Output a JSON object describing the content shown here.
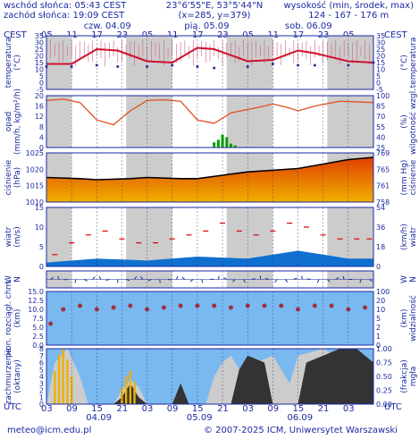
{
  "header": {
    "sunrise": "wschód słońca: 05:43 CEST",
    "sunset": "zachód słońca: 19:09 CEST",
    "coords": "23°6'55\"E, 53°5'44\"N",
    "grid": "(x=285, y=379)",
    "height_title": "wysokość (min, środek, max)",
    "height_values": "124 - 167 - 176 m"
  },
  "top_axis": {
    "tz_label": "CEST",
    "hours": [
      "05",
      "11",
      "17",
      "23",
      "05",
      "11",
      "17",
      "23",
      "05",
      "11",
      "17",
      "23",
      "05"
    ],
    "days": [
      "czw. 04.09",
      "pią. 05.09",
      "sob. 06.09"
    ]
  },
  "bottom_axis": {
    "tz_label": "UTC",
    "hours": [
      "03",
      "09",
      "15",
      "21",
      "03",
      "09",
      "15",
      "21",
      "03",
      "09",
      "15",
      "21",
      "03"
    ],
    "dates": [
      "04.09",
      "05.09",
      "06.09"
    ]
  },
  "footer": {
    "email": "meteo@icm.edu.pl",
    "copyright": "© 2007-2025 ICM, Uniwersytet Warszawski"
  },
  "colors": {
    "frame": "#1a2aa0",
    "night": "#cccccc",
    "temperature": "#d01030",
    "dewpoint": "#2030a0",
    "humidity": "#e05020",
    "precip": "#00a000",
    "pressure": "#000000",
    "wind_gust": "#e00000",
    "wind_band": "#1070d0",
    "sky": "#7ab8f0",
    "cloud_dark": "#333333",
    "cloud_light": "#cccccc",
    "fog": "#f0b000"
  },
  "panels": [
    {
      "label_left": [
        "temperatura",
        "(°C)"
      ],
      "label_right": [
        "(°C)",
        "temperatura"
      ],
      "ticks_left": [
        "35",
        "30",
        "25",
        "20",
        "15",
        "10",
        "5",
        "0",
        "-5"
      ],
      "ticks_right": [
        "35",
        "30",
        "25",
        "20",
        "15",
        "10",
        "5",
        "0",
        "-5"
      ]
    },
    {
      "label_left": [
        "opad",
        "(mm/h, kg/m²/h)"
      ],
      "label_right": [
        "(%)",
        "wilgotność wzgl."
      ],
      "ticks_left": [
        "20",
        "16",
        "12",
        "8",
        "4",
        "0"
      ],
      "ticks_right": [
        "100",
        "85",
        "70",
        "55",
        "40",
        "25"
      ]
    },
    {
      "label_left": [
        "ciśnienie",
        "(hPa)"
      ],
      "label_right": [
        "(mm Hg)",
        "ciśnienie"
      ],
      "ticks_left": [
        "1025",
        "1020",
        "1015",
        "1010"
      ],
      "ticks_right": [
        "769",
        "765",
        "761",
        "758"
      ]
    },
    {
      "label_left": [
        "wiatr",
        "(m/s)"
      ],
      "label_right": [
        "(km/h)",
        "wiatr"
      ],
      "ticks_left": [
        "15",
        "10",
        "5",
        "0"
      ],
      "ticks_right": [
        "54",
        "36",
        "18",
        "0"
      ]
    },
    {
      "label_left": [
        "W",
        "N"
      ],
      "label_right": [
        "W",
        "N"
      ],
      "ticks_left": [],
      "ticks_right": []
    },
    {
      "label_left": [
        "pion. rozciągł. chm.",
        "(km)"
      ],
      "label_right": [
        "(km)",
        "widzialność"
      ],
      "ticks_left": [
        "15.0",
        "12.5",
        "10.0",
        "7.5",
        "5.0",
        "2.5",
        "0.0"
      ],
      "ticks_right": [
        "100",
        "20",
        "10",
        "5",
        "2",
        "1",
        "0"
      ]
    },
    {
      "label_left": [
        "zachmurzenie",
        "(oktany)"
      ],
      "label_right": [
        "(frakcja)",
        "mgła"
      ],
      "ticks_left": [
        "8",
        "7",
        "6",
        "5",
        "4",
        "3",
        "2",
        "1",
        "0"
      ],
      "ticks_right": [
        "1.00",
        "0.75",
        "0.50",
        "0.25",
        "0.00"
      ]
    }
  ],
  "chart_data": [
    {
      "type": "line",
      "x_unit": "hours since 04.09 00:00 CEST",
      "ylim": [
        -5,
        35
      ],
      "series": [
        {
          "values": [
            [
              0,
              14
            ],
            [
              6,
              14
            ],
            [
              12,
              25
            ],
            [
              17,
              24
            ],
            [
              24,
              16
            ],
            [
              30,
              15
            ],
            [
              36,
              26
            ],
            [
              40,
              25
            ],
            [
              48,
              16
            ],
            [
              54,
              17
            ],
            [
              60,
              24
            ],
            [
              64,
              22
            ],
            [
              72,
              16
            ],
            [
              78,
              15
            ]
          ]
        },
        {
          "values": [
            [
              0,
              12
            ],
            [
              6,
              12
            ],
            [
              12,
              13
            ],
            [
              17,
              12
            ],
            [
              24,
              12
            ],
            [
              30,
              13
            ],
            [
              36,
              12
            ],
            [
              40,
              11
            ],
            [
              48,
              12
            ],
            [
              54,
              14
            ],
            [
              60,
              13
            ],
            [
              64,
              13
            ],
            [
              72,
              13
            ],
            [
              78,
              15
            ]
          ]
        }
      ]
    },
    {
      "type": "line",
      "ylim": [
        0,
        20
      ],
      "y2lim": [
        25,
        100
      ],
      "series": [
        {
          "values": [
            [
              0,
              93
            ],
            [
              4,
              95
            ],
            [
              8,
              90
            ],
            [
              12,
              65
            ],
            [
              16,
              58
            ],
            [
              20,
              78
            ],
            [
              24,
              93
            ],
            [
              28,
              94
            ],
            [
              32,
              92
            ],
            [
              36,
              65
            ],
            [
              40,
              60
            ],
            [
              44,
              75
            ],
            [
              48,
              80
            ],
            [
              52,
              85
            ],
            [
              54,
              88
            ],
            [
              58,
              82
            ],
            [
              60,
              78
            ],
            [
              64,
              85
            ],
            [
              70,
              92
            ],
            [
              78,
              90
            ]
          ]
        },
        {
          "type": "bar",
          "values": [
            [
              40,
              2
            ],
            [
              41,
              3
            ],
            [
              42,
              5
            ],
            [
              43,
              4
            ],
            [
              44,
              1.5
            ],
            [
              45,
              0.8
            ]
          ]
        }
      ]
    },
    {
      "type": "line",
      "ylim": [
        1006,
        1028
      ],
      "series": [
        {
          "values": [
            [
              0,
              1017
            ],
            [
              8,
              1016.5
            ],
            [
              12,
              1016
            ],
            [
              20,
              1016.5
            ],
            [
              24,
              1017
            ],
            [
              32,
              1016.5
            ],
            [
              36,
              1016.5
            ],
            [
              42,
              1018
            ],
            [
              48,
              1019.5
            ],
            [
              60,
              1021
            ],
            [
              66,
              1023
            ],
            [
              72,
              1025
            ],
            [
              78,
              1026
            ]
          ]
        }
      ]
    },
    {
      "type": "line",
      "ylim": [
        0,
        15
      ],
      "series": [
        {
          "values": [
            [
              0,
              1
            ],
            [
              12,
              2
            ],
            [
              24,
              1.5
            ],
            [
              36,
              2.5
            ],
            [
              48,
              2
            ],
            [
              54,
              3
            ],
            [
              60,
              4
            ],
            [
              66,
              3
            ],
            [
              72,
              2
            ],
            [
              78,
              2
            ]
          ]
        },
        {
          "type": "scatter",
          "values": [
            [
              2,
              3
            ],
            [
              6,
              6
            ],
            [
              10,
              8
            ],
            [
              14,
              9
            ],
            [
              18,
              7
            ],
            [
              22,
              6
            ],
            [
              26,
              6
            ],
            [
              30,
              7
            ],
            [
              34,
              8
            ],
            [
              38,
              9
            ],
            [
              42,
              11
            ],
            [
              46,
              9
            ],
            [
              50,
              8
            ],
            [
              54,
              9
            ],
            [
              58,
              11
            ],
            [
              62,
              10
            ],
            [
              66,
              8
            ],
            [
              70,
              7
            ],
            [
              74,
              7
            ],
            [
              77,
              7
            ]
          ]
        }
      ]
    },
    {
      "type": "scatter",
      "ylim": [
        0,
        15
      ],
      "series": [
        {
          "values": [
            [
              1,
              6
            ],
            [
              4,
              10
            ],
            [
              8,
              11
            ],
            [
              12,
              10
            ],
            [
              16,
              10.5
            ],
            [
              20,
              11
            ],
            [
              24,
              10
            ],
            [
              28,
              10.5
            ],
            [
              32,
              11
            ],
            [
              36,
              11
            ],
            [
              40,
              11
            ],
            [
              44,
              10.5
            ],
            [
              48,
              11
            ],
            [
              52,
              11
            ],
            [
              56,
              11
            ],
            [
              60,
              10
            ],
            [
              64,
              11
            ],
            [
              68,
              11
            ],
            [
              72,
              10
            ],
            [
              76,
              10.5
            ]
          ]
        }
      ]
    },
    {
      "type": "area",
      "ylim": [
        0,
        8
      ],
      "series": [
        {
          "values": [
            [
              0,
              0
            ],
            [
              2,
              6
            ],
            [
              5,
              8
            ],
            [
              8,
              4
            ],
            [
              10,
              0
            ],
            [
              16,
              0
            ],
            [
              18,
              2
            ],
            [
              20,
              3.5
            ],
            [
              22,
              2.5
            ],
            [
              24,
              0
            ],
            [
              38,
              0
            ],
            [
              40,
              4
            ],
            [
              42,
              6
            ],
            [
              44,
              7
            ],
            [
              46,
              5
            ],
            [
              48,
              2
            ],
            [
              50,
              6
            ],
            [
              54,
              7
            ],
            [
              58,
              3
            ],
            [
              60,
              7
            ],
            [
              66,
              8
            ],
            [
              72,
              6
            ],
            [
              76,
              4
            ],
            [
              78,
              5
            ]
          ]
        },
        {
          "values": [
            [
              0,
              0
            ],
            [
              16,
              0
            ],
            [
              18,
              1
            ],
            [
              20,
              3
            ],
            [
              22,
              1
            ],
            [
              24,
              0
            ],
            [
              30,
              0
            ],
            [
              32,
              3
            ],
            [
              34,
              0
            ],
            [
              44,
              0
            ],
            [
              46,
              5
            ],
            [
              48,
              7
            ],
            [
              52,
              6
            ],
            [
              54,
              0
            ],
            [
              60,
              0
            ],
            [
              62,
              6
            ],
            [
              66,
              7
            ],
            [
              70,
              8
            ],
            [
              74,
              8
            ],
            [
              78,
              6
            ]
          ]
        },
        {
          "type": "bar",
          "values": [
            [
              2,
              0.6
            ],
            [
              3,
              0.9
            ],
            [
              4,
              1
            ],
            [
              5,
              0.8
            ],
            [
              6,
              0.5
            ],
            [
              18,
              0.3
            ],
            [
              19,
              0.5
            ],
            [
              20,
              0.6
            ],
            [
              21,
              0.4
            ]
          ]
        }
      ]
    }
  ]
}
